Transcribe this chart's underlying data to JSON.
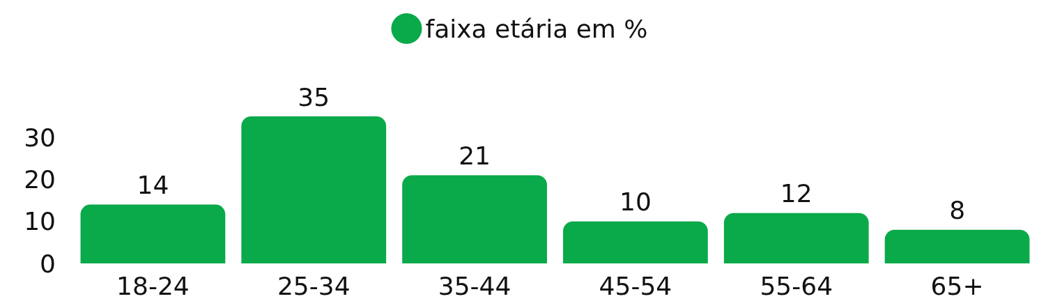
{
  "chart_data": {
    "type": "bar",
    "categories": [
      "18-24",
      "25-34",
      "35-44",
      "45-54",
      "55-64",
      "65+"
    ],
    "series": [
      {
        "name": "faixa etária em %",
        "color": "#0aa94a",
        "values": [
          14,
          35,
          21,
          10,
          12,
          8
        ]
      }
    ],
    "ylim": [
      0,
      35
    ],
    "yticks": [
      0,
      10,
      20,
      30
    ],
    "grid": false,
    "legend": "top",
    "data_labels": true
  }
}
